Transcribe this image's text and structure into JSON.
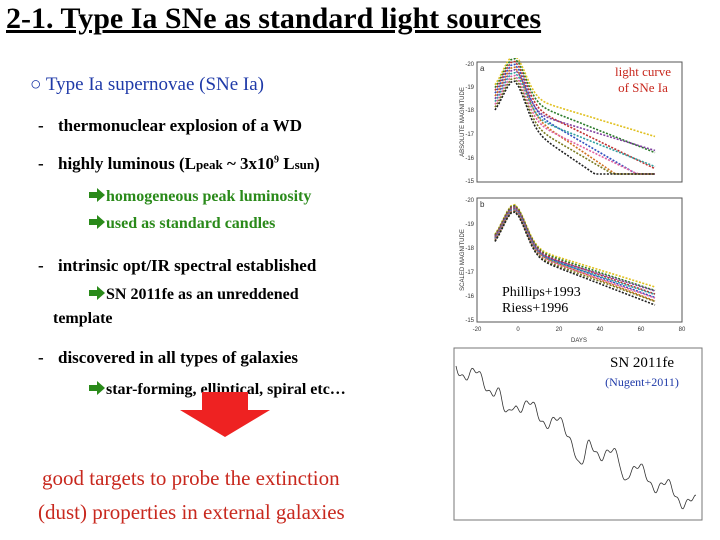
{
  "title": "2-1. Type Ia SNe as standard light sources",
  "heading": "○ Type Ia supernovae (SNe Ia)",
  "bullets": {
    "b1": "thermonuclear explosion of a WD",
    "b2_pre": "highly luminous (L",
    "b2_sub1": "peak",
    "b2_mid": " ~ 3x10",
    "b2_sup": "9",
    "b2_l": " L",
    "b2_sub2": "sun",
    "b2_post": ")",
    "b2_sub_a": "homogeneous peak luminosity",
    "b2_sub_b": "used as standard candles",
    "b3": "intrinsic opt/IR spectral established",
    "b3_sub_line1": "SN 2011fe as an unreddened",
    "b3_sub_line2": "template",
    "b4": "discovered in all types of galaxies",
    "b4_sub": "star-forming, elliptical, spiral etc…"
  },
  "dash": "-",
  "conclusion": {
    "line1": "good targets to probe the extinction",
    "line2": "(dust) properties in external galaxies"
  },
  "figure1": {
    "label_line1": "light curve",
    "label_line2": "of SNe Ia",
    "panel_a": "a",
    "panel_b": "b",
    "ylabel_a": "ABSOLUTE MAGNITUDE",
    "ylabel_b": "SCALED MAGNITUDE",
    "yticks_a": [
      "-20",
      "-19",
      "-18",
      "-17",
      "-16",
      "-15"
    ],
    "yticks_b": [
      "-20",
      "-19",
      "-18",
      "-17",
      "-16",
      "-15"
    ],
    "xticks": [
      "-20",
      "0",
      "20",
      "40",
      "60",
      "80"
    ],
    "xlabel": "DAYS",
    "ref_line1": "Phillips+1993",
    "ref_line2": "Riess+1996"
  },
  "figure2": {
    "label_line1": "SN 2011fe",
    "label_line2": "(Nugent+2011)"
  },
  "colors": {
    "title": "#000000",
    "heading": "#1f3aa8",
    "green": "#2a8a1a",
    "red": "#c8281e",
    "arrow": "#ee2222"
  }
}
